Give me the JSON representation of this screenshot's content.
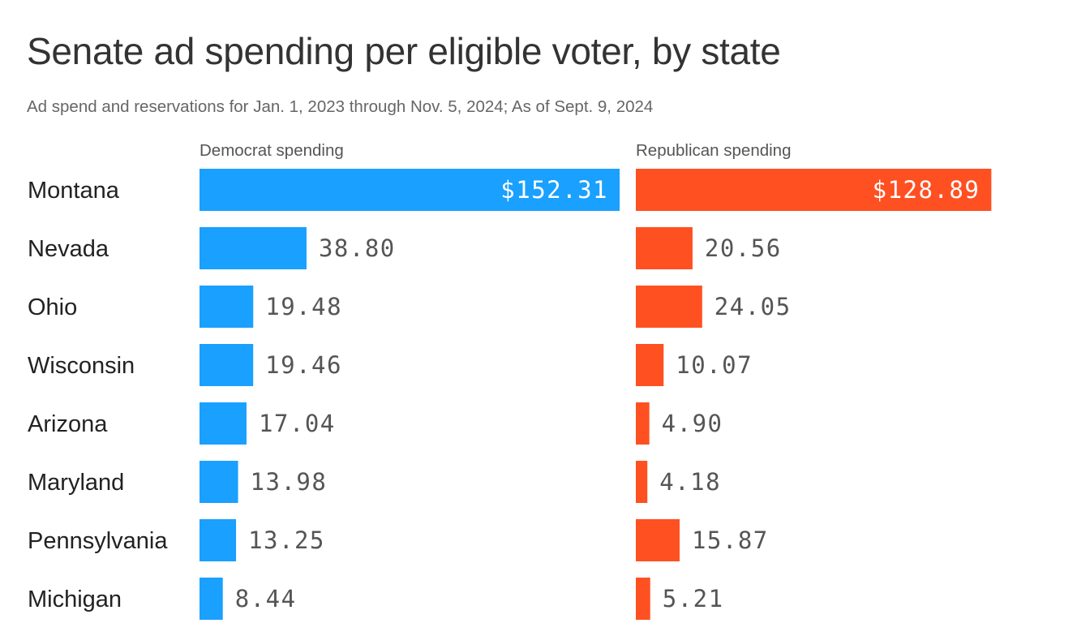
{
  "title": "Senate ad spending per eligible voter, by state",
  "subtitle": "Ad spend and reservations for Jan. 1, 2023 through Nov. 5, 2024; As of Sept. 9, 2024",
  "colors": {
    "democrat": "#1aa0ff",
    "republican": "#ff5022",
    "label_text": "#222222",
    "value_text": "#555555"
  },
  "chart_data": {
    "type": "bar",
    "orientation": "horizontal",
    "title": "Senate ad spending per eligible voter, by state",
    "subtitle": "Ad spend and reservations for Jan. 1, 2023 through Nov. 5, 2024; As of Sept. 9, 2024",
    "categories": [
      "Montana",
      "Nevada",
      "Ohio",
      "Wisconsin",
      "Arizona",
      "Maryland",
      "Pennsylvania",
      "Michigan"
    ],
    "series": [
      {
        "name": "Democrat spending",
        "color": "#1aa0ff",
        "values": [
          152.31,
          38.8,
          19.48,
          19.46,
          17.04,
          13.98,
          13.25,
          8.44
        ],
        "labels": [
          "$152.31",
          "38.80",
          "19.48",
          "19.46",
          "17.04",
          "13.98",
          "13.25",
          "8.44"
        ]
      },
      {
        "name": "Republican spending",
        "color": "#ff5022",
        "values": [
          128.89,
          20.56,
          24.05,
          10.07,
          4.9,
          4.18,
          15.87,
          5.21
        ],
        "labels": [
          "$128.89",
          "20.56",
          "24.05",
          "10.07",
          "4.90",
          "4.18",
          "15.87",
          "5.21"
        ]
      }
    ],
    "xlim": [
      0,
      152.31
    ],
    "grid": false,
    "legend": "column headers"
  }
}
